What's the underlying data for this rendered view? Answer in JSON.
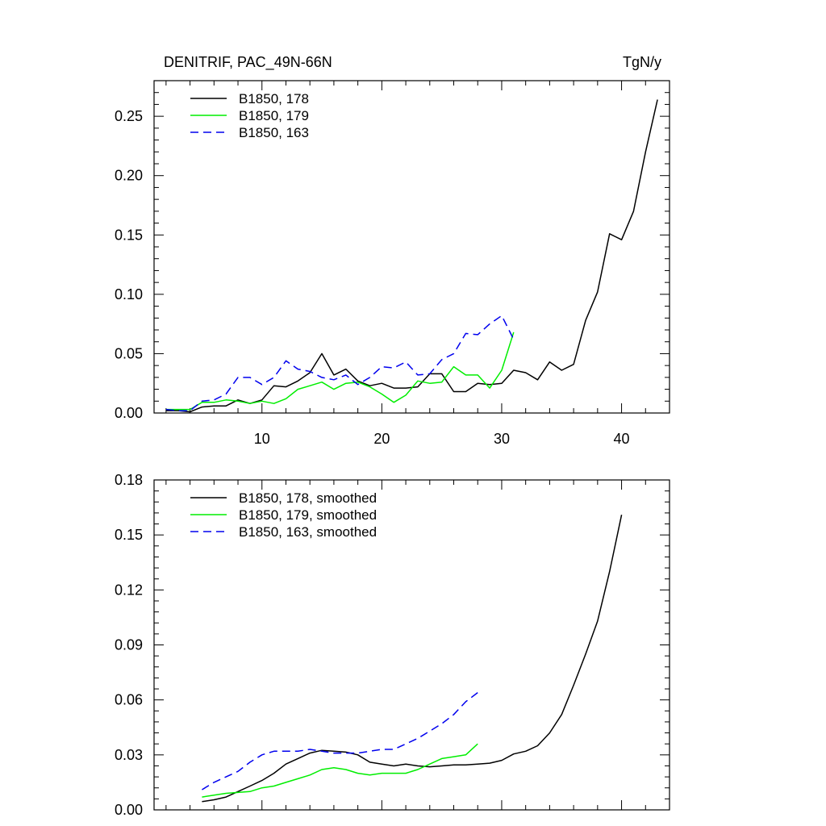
{
  "chart_data": [
    {
      "type": "line",
      "title_left": "DENITRIF, PAC_49N-66N",
      "title_right": "TgN/y",
      "xlabel": "",
      "ylabel": "",
      "xlim": [
        1,
        44
      ],
      "ylim": [
        0,
        0.28
      ],
      "x_ticks": [
        10,
        20,
        30,
        40
      ],
      "x_tick_labels": [
        "10",
        "20",
        "30",
        "40"
      ],
      "y_ticks": [
        0,
        0.05,
        0.1,
        0.15,
        0.2,
        0.25
      ],
      "y_tick_labels": [
        "0.00",
        "0.05",
        "0.10",
        "0.15",
        "0.20",
        "0.25"
      ],
      "legend_position": "top-left",
      "series": [
        {
          "name": "B1850, 178",
          "color": "#000000",
          "dash": "solid",
          "x": [
            2,
            3,
            4,
            5,
            6,
            7,
            8,
            9,
            10,
            11,
            12,
            13,
            14,
            15,
            16,
            17,
            18,
            19,
            20,
            21,
            22,
            23,
            24,
            25,
            26,
            27,
            28,
            29,
            30,
            31,
            32,
            33,
            34,
            35,
            36,
            37,
            38,
            39,
            40,
            41,
            42,
            43
          ],
          "values": [
            0.002,
            0.002,
            0.001,
            0.005,
            0.006,
            0.006,
            0.011,
            0.008,
            0.011,
            0.023,
            0.022,
            0.027,
            0.034,
            0.05,
            0.032,
            0.037,
            0.027,
            0.023,
            0.025,
            0.021,
            0.021,
            0.022,
            0.033,
            0.033,
            0.018,
            0.018,
            0.025,
            0.024,
            0.025,
            0.036,
            0.034,
            0.028,
            0.043,
            0.036,
            0.041,
            0.078,
            0.102,
            0.151,
            0.146,
            0.17,
            0.22,
            0.264
          ]
        },
        {
          "name": "B1850, 179",
          "color": "#00ee00",
          "dash": "solid",
          "x": [
            2,
            3,
            4,
            5,
            6,
            7,
            8,
            9,
            10,
            11,
            12,
            13,
            14,
            15,
            16,
            17,
            18,
            19,
            20,
            21,
            22,
            23,
            24,
            25,
            26,
            27,
            28,
            29,
            30,
            31
          ],
          "values": [
            0.003,
            0.003,
            0.003,
            0.009,
            0.009,
            0.011,
            0.01,
            0.008,
            0.01,
            0.008,
            0.012,
            0.02,
            0.023,
            0.026,
            0.02,
            0.025,
            0.026,
            0.022,
            0.016,
            0.009,
            0.015,
            0.027,
            0.025,
            0.026,
            0.039,
            0.032,
            0.032,
            0.021,
            0.036,
            0.068
          ]
        },
        {
          "name": "B1850, 163",
          "color": "#0000ee",
          "dash": "dashed",
          "x": [
            2,
            3,
            4,
            5,
            6,
            7,
            8,
            9,
            10,
            11,
            12,
            13,
            14,
            15,
            16,
            17,
            18,
            19,
            20,
            21,
            22,
            23,
            24,
            25,
            26,
            27,
            28,
            29,
            30,
            31
          ],
          "values": [
            0.003,
            0.002,
            0.002,
            0.01,
            0.011,
            0.016,
            0.03,
            0.03,
            0.024,
            0.03,
            0.044,
            0.037,
            0.035,
            0.03,
            0.028,
            0.032,
            0.024,
            0.03,
            0.039,
            0.038,
            0.043,
            0.032,
            0.033,
            0.045,
            0.05,
            0.067,
            0.066,
            0.075,
            0.082,
            0.062
          ]
        }
      ]
    },
    {
      "type": "line",
      "title_left": "",
      "title_right": "",
      "xlabel": "",
      "ylabel": "",
      "xlim": [
        1,
        44
      ],
      "ylim": [
        0,
        0.18
      ],
      "x_ticks": [
        10,
        20,
        30,
        40
      ],
      "x_tick_labels": [],
      "y_ticks": [
        0,
        0.03,
        0.06,
        0.09,
        0.12,
        0.15,
        0.18
      ],
      "y_tick_labels": [
        "0.00",
        "0.03",
        "0.06",
        "0.09",
        "0.12",
        "0.15",
        "0.18"
      ],
      "legend_position": "top-left",
      "series": [
        {
          "name": "B1850, 178, smoothed",
          "color": "#000000",
          "dash": "solid",
          "x": [
            5,
            6,
            7,
            8,
            9,
            10,
            11,
            12,
            13,
            14,
            15,
            16,
            17,
            18,
            19,
            20,
            21,
            22,
            23,
            24,
            25,
            26,
            27,
            28,
            29,
            30,
            31,
            32,
            33,
            34,
            35,
            36,
            37,
            38,
            39,
            40
          ],
          "values": [
            0.0045,
            0.0055,
            0.007,
            0.01,
            0.013,
            0.016,
            0.02,
            0.025,
            0.028,
            0.031,
            0.0325,
            0.032,
            0.0315,
            0.03,
            0.026,
            0.025,
            0.024,
            0.025,
            0.024,
            0.0235,
            0.024,
            0.0245,
            0.0245,
            0.025,
            0.0255,
            0.027,
            0.0305,
            0.032,
            0.035,
            0.042,
            0.052,
            0.068,
            0.085,
            0.103,
            0.13,
            0.161
          ]
        },
        {
          "name": "B1850, 179, smoothed",
          "color": "#00ee00",
          "dash": "solid",
          "x": [
            5,
            6,
            7,
            8,
            9,
            10,
            11,
            12,
            13,
            14,
            15,
            16,
            17,
            18,
            19,
            20,
            21,
            22,
            23,
            24,
            25,
            26,
            27,
            28
          ],
          "values": [
            0.007,
            0.008,
            0.009,
            0.0095,
            0.01,
            0.012,
            0.013,
            0.015,
            0.017,
            0.019,
            0.022,
            0.023,
            0.022,
            0.02,
            0.019,
            0.02,
            0.02,
            0.02,
            0.022,
            0.025,
            0.028,
            0.029,
            0.03,
            0.036
          ]
        },
        {
          "name": "B1850, 163, smoothed",
          "color": "#0000ee",
          "dash": "dashed",
          "x": [
            5,
            6,
            7,
            8,
            9,
            10,
            11,
            12,
            13,
            14,
            15,
            16,
            17,
            18,
            19,
            20,
            21,
            22,
            23,
            24,
            25,
            26,
            27,
            28
          ],
          "values": [
            0.011,
            0.015,
            0.018,
            0.021,
            0.026,
            0.03,
            0.032,
            0.032,
            0.032,
            0.033,
            0.032,
            0.031,
            0.031,
            0.031,
            0.032,
            0.033,
            0.033,
            0.036,
            0.039,
            0.043,
            0.047,
            0.052,
            0.059,
            0.064
          ]
        }
      ]
    }
  ]
}
